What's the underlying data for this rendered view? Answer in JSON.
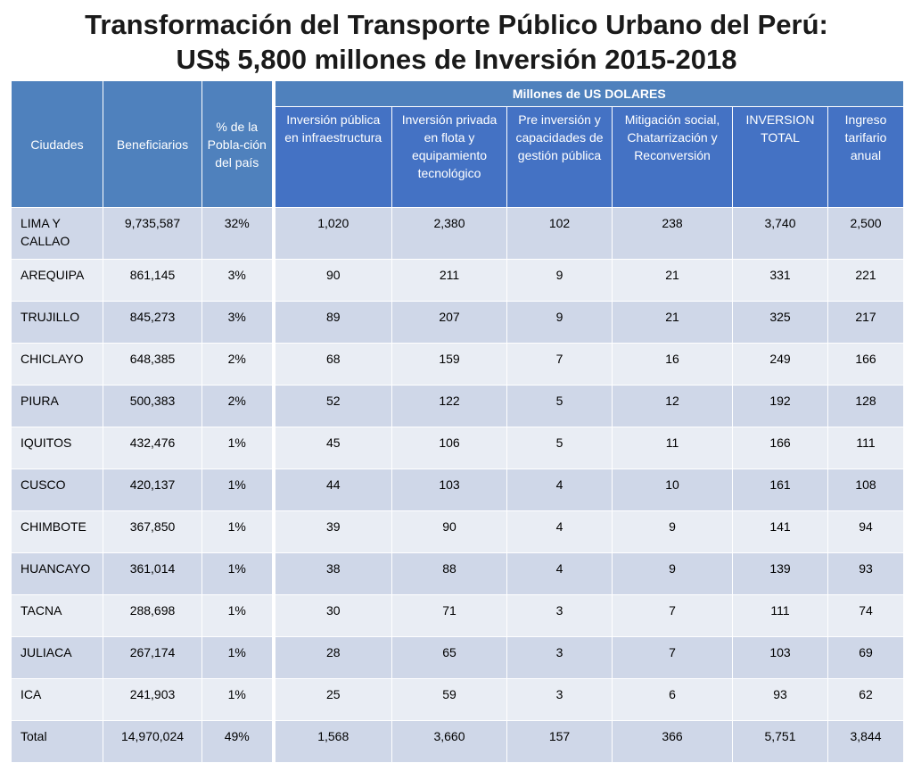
{
  "title": {
    "line1": "Transformación del Transporte Público Urbano del Perú:",
    "line2": "US$ 5,800 millones de Inversión 2015-2018"
  },
  "table": {
    "group_header": "Millones de US DOLARES",
    "headers": {
      "ciudades": "Ciudades",
      "beneficiarios": "Beneficiarios",
      "porcentaje": "% de la Pobla-ción del país",
      "inv_publica": "Inversión pública en infraestructura",
      "inv_privada": "Inversión privada en flota y equipamiento tecnológico",
      "pre_inversion": "Pre inversión y capacidades de gestión pública",
      "mitigacion": "Mitigación social, Chatarrización y Reconversión",
      "inversion_total": "INVERSION TOTAL",
      "ingreso": "Ingreso tarifario anual"
    },
    "rows": [
      {
        "city": "LIMA Y CALLAO",
        "ben": "9,735,587",
        "pct": "32%",
        "pub": "1,020",
        "priv": "2,380",
        "pre": "102",
        "mit": "238",
        "total": "3,740",
        "ing": "2,500"
      },
      {
        "city": "AREQUIPA",
        "ben": "861,145",
        "pct": "3%",
        "pub": "90",
        "priv": "211",
        "pre": "9",
        "mit": "21",
        "total": "331",
        "ing": "221"
      },
      {
        "city": "TRUJILLO",
        "ben": "845,273",
        "pct": "3%",
        "pub": "89",
        "priv": "207",
        "pre": "9",
        "mit": "21",
        "total": "325",
        "ing": "217"
      },
      {
        "city": "CHICLAYO",
        "ben": "648,385",
        "pct": "2%",
        "pub": "68",
        "priv": "159",
        "pre": "7",
        "mit": "16",
        "total": "249",
        "ing": "166"
      },
      {
        "city": "PIURA",
        "ben": "500,383",
        "pct": "2%",
        "pub": "52",
        "priv": "122",
        "pre": "5",
        "mit": "12",
        "total": "192",
        "ing": "128"
      },
      {
        "city": "IQUITOS",
        "ben": "432,476",
        "pct": "1%",
        "pub": "45",
        "priv": "106",
        "pre": "5",
        "mit": "11",
        "total": "166",
        "ing": "111"
      },
      {
        "city": "CUSCO",
        "ben": "420,137",
        "pct": "1%",
        "pub": "44",
        "priv": "103",
        "pre": "4",
        "mit": "10",
        "total": "161",
        "ing": "108"
      },
      {
        "city": "CHIMBOTE",
        "ben": "367,850",
        "pct": "1%",
        "pub": "39",
        "priv": "90",
        "pre": "4",
        "mit": "9",
        "total": "141",
        "ing": "94"
      },
      {
        "city": "HUANCAYO",
        "ben": "361,014",
        "pct": "1%",
        "pub": "38",
        "priv": "88",
        "pre": "4",
        "mit": "9",
        "total": "139",
        "ing": "93"
      },
      {
        "city": "TACNA",
        "ben": "288,698",
        "pct": "1%",
        "pub": "30",
        "priv": "71",
        "pre": "3",
        "mit": "7",
        "total": "111",
        "ing": "74"
      },
      {
        "city": "JULIACA",
        "ben": "267,174",
        "pct": "1%",
        "pub": "28",
        "priv": "65",
        "pre": "3",
        "mit": "7",
        "total": "103",
        "ing": "69"
      },
      {
        "city": "ICA",
        "ben": "241,903",
        "pct": "1%",
        "pub": "25",
        "priv": "59",
        "pre": "3",
        "mit": "6",
        "total": "93",
        "ing": "62"
      },
      {
        "city": "Total",
        "ben": "14,970,024",
        "pct": "49%",
        "pub": "1,568",
        "priv": "3,660",
        "pre": "157",
        "mit": "366",
        "total": "5,751",
        "ing": "3,844"
      }
    ]
  },
  "colors": {
    "header_bg": "#4f81bd",
    "subheader_bg": "#4472c4",
    "row_dark": "#cfd7e8",
    "row_light": "#e9edf4"
  }
}
